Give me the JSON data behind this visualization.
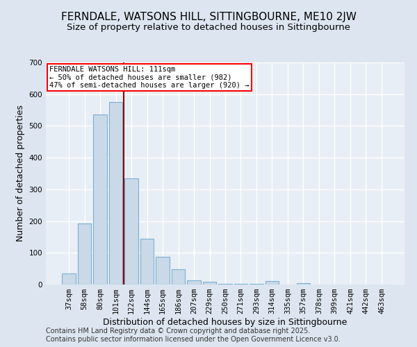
{
  "title": "FERNDALE, WATSONS HILL, SITTINGBOURNE, ME10 2JW",
  "subtitle": "Size of property relative to detached houses in Sittingbourne",
  "xlabel": "Distribution of detached houses by size in Sittingbourne",
  "ylabel": "Number of detached properties",
  "categories": [
    "37sqm",
    "58sqm",
    "80sqm",
    "101sqm",
    "122sqm",
    "144sqm",
    "165sqm",
    "186sqm",
    "207sqm",
    "229sqm",
    "250sqm",
    "271sqm",
    "293sqm",
    "314sqm",
    "335sqm",
    "357sqm",
    "378sqm",
    "399sqm",
    "421sqm",
    "442sqm",
    "463sqm"
  ],
  "values": [
    35,
    193,
    535,
    575,
    335,
    145,
    88,
    48,
    13,
    8,
    3,
    3,
    3,
    10,
    0,
    5,
    0,
    0,
    0,
    0,
    0
  ],
  "bar_color": "#c9d9e8",
  "bar_edge_color": "#7bafd4",
  "red_line_x": 3.5,
  "annotation_line1": "FERNDALE WATSONS HILL: 111sqm",
  "annotation_line2": "← 50% of detached houses are smaller (982)",
  "annotation_line3": "47% of semi-detached houses are larger (920) →",
  "ylim": [
    0,
    700
  ],
  "yticks": [
    0,
    100,
    200,
    300,
    400,
    500,
    600,
    700
  ],
  "bg_color": "#dde6f0",
  "plot_bg_color": "#e8eef5",
  "grid_color": "#ffffff",
  "title_fontsize": 11,
  "subtitle_fontsize": 9.5,
  "axis_fontsize": 9,
  "tick_fontsize": 7.5,
  "annot_fontsize": 7.5,
  "footer_line1": "Contains HM Land Registry data © Crown copyright and database right 2025.",
  "footer_line2": "Contains public sector information licensed under the Open Government Licence v3.0."
}
